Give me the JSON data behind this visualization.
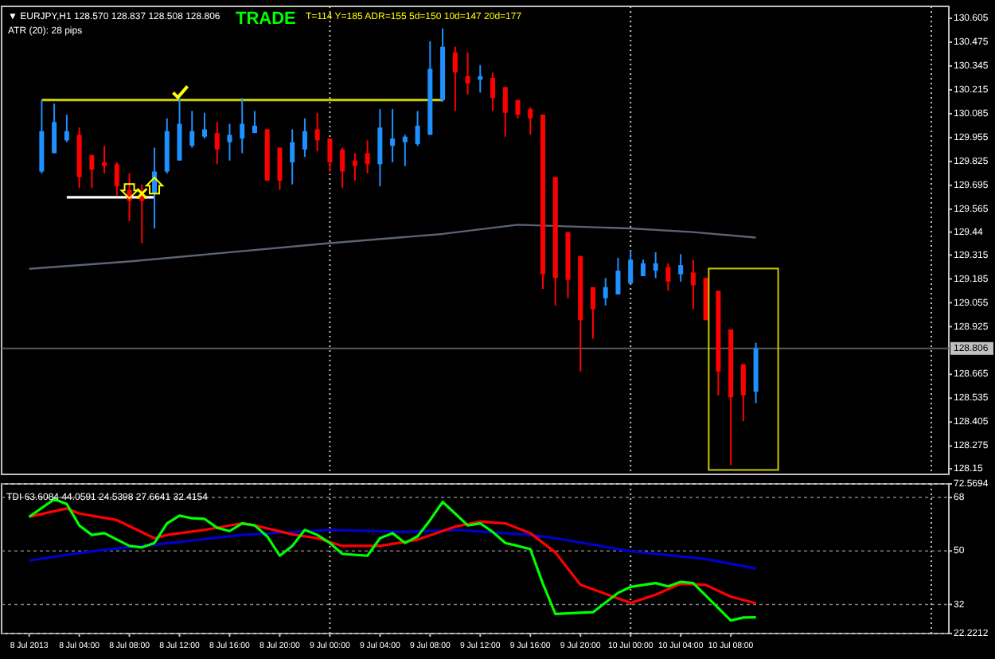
{
  "chart_data": [
    {
      "type": "candlestick",
      "xlim": [
        "2013-07-07T21:48",
        "2013-07-11T01:24"
      ],
      "ylim": [
        128.12,
        130.67
      ],
      "tick_labels": "y",
      "yticks": [
        128.15,
        128.275,
        128.405,
        128.535,
        128.665,
        128.925,
        129.055,
        129.185,
        129.315,
        129.44,
        129.565,
        129.695,
        129.825,
        129.955,
        130.085,
        130.215,
        130.345,
        130.475,
        130.605
      ],
      "x": [
        "2013-07-08T01:00",
        "2013-07-08T02:00",
        "2013-07-08T03:00",
        "2013-07-08T04:00",
        "2013-07-08T05:00",
        "2013-07-08T06:00",
        "2013-07-08T07:00",
        "2013-07-08T08:00",
        "2013-07-08T09:00",
        "2013-07-08T10:00",
        "2013-07-08T11:00",
        "2013-07-08T12:00",
        "2013-07-08T13:00",
        "2013-07-08T14:00",
        "2013-07-08T15:00",
        "2013-07-08T16:00",
        "2013-07-08T17:00",
        "2013-07-08T18:00",
        "2013-07-08T19:00",
        "2013-07-08T20:00",
        "2013-07-08T21:00",
        "2013-07-08T22:00",
        "2013-07-08T23:00",
        "2013-07-09T00:00",
        "2013-07-09T01:00",
        "2013-07-09T02:00",
        "2013-07-09T03:00",
        "2013-07-09T04:00",
        "2013-07-09T05:00",
        "2013-07-09T06:00",
        "2013-07-09T07:00",
        "2013-07-09T08:00",
        "2013-07-09T09:00",
        "2013-07-09T10:00",
        "2013-07-09T11:00",
        "2013-07-09T12:00",
        "2013-07-09T13:00",
        "2013-07-09T14:00",
        "2013-07-09T15:00",
        "2013-07-09T16:00",
        "2013-07-09T17:00",
        "2013-07-09T18:00",
        "2013-07-09T19:00",
        "2013-07-09T20:00",
        "2013-07-09T21:00",
        "2013-07-09T22:00",
        "2013-07-09T23:00",
        "2013-07-10T00:00",
        "2013-07-10T01:00",
        "2013-07-10T02:00",
        "2013-07-10T03:00",
        "2013-07-10T04:00",
        "2013-07-10T05:00",
        "2013-07-10T06:00",
        "2013-07-10T07:00",
        "2013-07-10T08:00",
        "2013-07-10T09:00",
        "2013-07-10T10:00"
      ],
      "ohlc": [
        [
          129.77,
          130.16,
          129.76,
          129.99
        ],
        [
          129.87,
          130.14,
          129.87,
          130.04
        ],
        [
          129.94,
          130.08,
          129.93,
          129.99
        ],
        [
          129.97,
          130.01,
          129.68,
          129.74
        ],
        [
          129.86,
          129.86,
          129.68,
          129.78
        ],
        [
          129.82,
          129.91,
          129.76,
          129.8
        ],
        [
          129.81,
          129.82,
          129.64,
          129.69
        ],
        [
          129.67,
          129.76,
          129.5,
          129.61
        ],
        [
          129.65,
          129.7,
          129.38,
          129.61
        ],
        [
          129.65,
          129.9,
          129.46,
          129.77
        ],
        [
          129.77,
          130.06,
          129.76,
          129.99
        ],
        [
          129.83,
          130.17,
          129.83,
          130.03
        ],
        [
          129.91,
          130.1,
          129.9,
          129.99
        ],
        [
          129.96,
          130.09,
          129.95,
          130.0
        ],
        [
          129.98,
          130.04,
          129.81,
          129.89
        ],
        [
          129.93,
          130.03,
          129.83,
          129.97
        ],
        [
          129.95,
          130.17,
          129.87,
          130.03
        ],
        [
          129.98,
          130.1,
          129.98,
          130.02
        ],
        [
          130.0,
          130.0,
          129.72,
          129.72
        ],
        [
          129.9,
          129.9,
          129.67,
          129.72
        ],
        [
          129.82,
          130.0,
          129.7,
          129.93
        ],
        [
          129.89,
          130.06,
          129.85,
          129.99
        ],
        [
          130.0,
          130.09,
          129.88,
          129.94
        ],
        [
          129.95,
          129.95,
          129.77,
          129.82
        ],
        [
          129.89,
          129.9,
          129.68,
          129.77
        ],
        [
          129.83,
          129.87,
          129.72,
          129.8
        ],
        [
          129.87,
          129.94,
          129.76,
          129.81
        ],
        [
          129.81,
          130.11,
          129.69,
          130.01
        ],
        [
          129.91,
          130.11,
          129.82,
          129.95
        ],
        [
          129.93,
          129.97,
          129.8,
          129.96
        ],
        [
          129.92,
          130.1,
          129.91,
          130.02
        ],
        [
          129.97,
          130.48,
          129.97,
          130.33
        ],
        [
          130.16,
          130.55,
          130.15,
          130.45
        ],
        [
          130.42,
          130.45,
          130.1,
          130.31
        ],
        [
          130.29,
          130.42,
          130.19,
          130.25
        ],
        [
          130.27,
          130.35,
          130.2,
          130.29
        ],
        [
          130.28,
          130.31,
          130.1,
          130.17
        ],
        [
          130.23,
          130.23,
          129.96,
          130.09
        ],
        [
          130.16,
          130.16,
          130.06,
          130.08
        ],
        [
          130.11,
          130.12,
          129.97,
          130.06
        ],
        [
          130.08,
          130.08,
          129.13,
          129.21
        ],
        [
          129.74,
          129.74,
          129.04,
          129.19
        ],
        [
          129.44,
          129.44,
          129.08,
          129.18
        ],
        [
          129.31,
          129.31,
          128.68,
          128.96
        ],
        [
          129.14,
          129.14,
          128.86,
          129.02
        ],
        [
          129.08,
          129.19,
          129.04,
          129.14
        ],
        [
          129.1,
          129.3,
          129.1,
          129.23
        ],
        [
          129.16,
          129.34,
          129.16,
          129.29
        ],
        [
          129.2,
          129.29,
          129.2,
          129.27
        ],
        [
          129.23,
          129.33,
          129.19,
          129.27
        ],
        [
          129.25,
          129.27,
          129.12,
          129.17
        ],
        [
          129.21,
          129.32,
          129.17,
          129.26
        ],
        [
          129.22,
          129.29,
          129.02,
          129.15
        ],
        [
          129.19,
          129.19,
          128.96,
          128.96
        ],
        [
          129.12,
          129.12,
          128.55,
          128.68
        ],
        [
          128.91,
          128.91,
          128.17,
          128.54
        ],
        [
          128.72,
          128.72,
          128.41,
          128.55
        ],
        [
          128.57,
          128.837,
          128.508,
          128.806
        ]
      ],
      "colors": [
        "#1e90ff",
        "#1e90ff",
        "#1e90ff",
        "#ff0000",
        "#ff0000",
        "#ff0000",
        "#ff0000",
        "#ff0000",
        "#ff0000",
        "#1e90ff",
        "#1e90ff",
        "#1e90ff",
        "#1e90ff",
        "#1e90ff",
        "#ff0000",
        "#1e90ff",
        "#1e90ff",
        "#1e90ff",
        "#ff0000",
        "#ff0000",
        "#1e90ff",
        "#1e90ff",
        "#ff0000",
        "#ff0000",
        "#ff0000",
        "#ff0000",
        "#ff0000",
        "#1e90ff",
        "#1e90ff",
        "#1e90ff",
        "#1e90ff",
        "#1e90ff",
        "#1e90ff",
        "#ff0000",
        "#ff0000",
        "#1e90ff",
        "#ff0000",
        "#ff0000",
        "#ff0000",
        "#ff0000",
        "#ff0000",
        "#ff0000",
        "#ff0000",
        "#ff0000",
        "#ff0000",
        "#1e90ff",
        "#1e90ff",
        "#1e90ff",
        "#1e90ff",
        "#1e90ff",
        "#ff0000",
        "#1e90ff",
        "#ff0000",
        "#ff0000",
        "#ff0000",
        "#ff0000",
        "#ff0000",
        "#1e90ff"
      ],
      "series": [
        {
          "type": "line",
          "color": "#5a6472",
          "x": [
            "2013-07-08T00:00",
            "2013-07-08T08:00",
            "2013-07-09T00:00",
            "2013-07-09T09:00",
            "2013-07-09T15:00",
            "2013-07-10T00:00",
            "2013-07-10T05:00",
            "2013-07-10T10:00"
          ],
          "values": [
            129.24,
            129.28,
            129.38,
            129.43,
            129.48,
            129.46,
            129.44,
            129.41
          ]
        },
        {
          "type": "line",
          "color": "#c8c800",
          "x": [
            "2013-07-08T01:00",
            "2013-07-09T09:00"
          ],
          "values": [
            130.16,
            130.16
          ]
        },
        {
          "type": "line",
          "color": "#ffffff",
          "x": [
            "2013-07-08T03:00",
            "2013-07-08T10:00"
          ],
          "values": [
            129.63,
            129.63
          ]
        }
      ],
      "ref_lines": [
        {
          "axis": "y",
          "value": 128.806,
          "label": "128.806",
          "color": "#5a5a5a",
          "line_style": "solid"
        },
        {
          "axis": "x",
          "value": "2013-07-09T00:00",
          "color": "#c0c0c0",
          "line_style": "dotted"
        },
        {
          "axis": "x",
          "value": "2013-07-10T00:00",
          "color": "#c0c0c0",
          "line_style": "dotted"
        },
        {
          "axis": "x",
          "value": "2013-07-11T00:00",
          "color": "#c0c0c0",
          "line_style": "dotted"
        }
      ],
      "annotations": [
        "▼ EURJPY,H1 128.570 128.837 128.508 128.806",
        "TRADE",
        "T=114 Y=185 ADR=155 5d=150 10d=147 20d=177",
        "ATR (20): 28 pips"
      ]
    },
    {
      "type": "line",
      "xlim": [
        "2013-07-07T21:48",
        "2013-07-11T01:24"
      ],
      "ylim": [
        22.2212,
        72.5694
      ],
      "yticks": [
        72.5694,
        68,
        50,
        32,
        22.2212
      ],
      "grid": "y",
      "xticks": [
        {
          "value": "2013-07-08T00:00",
          "label": "8 Jul 2013"
        },
        {
          "value": "2013-07-08T04:00",
          "label": "8 Jul 04:00"
        },
        {
          "value": "2013-07-08T08:00",
          "label": "8 Jul 08:00"
        },
        {
          "value": "2013-07-08T12:00",
          "label": "8 Jul 12:00"
        },
        {
          "value": "2013-07-08T16:00",
          "label": "8 Jul 16:00"
        },
        {
          "value": "2013-07-08T20:00",
          "label": "8 Jul 20:00"
        },
        {
          "value": "2013-07-09T00:00",
          "label": "9 Jul 00:00"
        },
        {
          "value": "2013-07-09T04:00",
          "label": "9 Jul 04:00"
        },
        {
          "value": "2013-07-09T08:00",
          "label": "9 Jul 08:00"
        },
        {
          "value": "2013-07-09T12:00",
          "label": "9 Jul 12:00"
        },
        {
          "value": "2013-07-09T16:00",
          "label": "9 Jul 16:00"
        },
        {
          "value": "2013-07-09T20:00",
          "label": "9 Jul 20:00"
        },
        {
          "value": "2013-07-10T00:00",
          "label": "10 Jul 00:00"
        },
        {
          "value": "2013-07-10T04:00",
          "label": "10 Jul 04:00"
        },
        {
          "value": "2013-07-10T08:00",
          "label": "10 Jul 08:00"
        }
      ],
      "series": [
        {
          "color": "#0000cd",
          "x": [
            "2013-07-08T00:00",
            "2013-07-08T05:00",
            "2013-07-08T10:00",
            "2013-07-08T17:00",
            "2013-07-09T00:00",
            "2013-07-09T06:00",
            "2013-07-09T10:00",
            "2013-07-09T16:00",
            "2013-07-09T18:00",
            "2013-07-10T00:00",
            "2013-07-10T06:00",
            "2013-07-10T10:00"
          ],
          "values": [
            46.8,
            49.9,
            52.1,
            55.4,
            57.1,
            56.4,
            57.1,
            55.4,
            54.3,
            49.9,
            47.3,
            44.1
          ]
        },
        {
          "color": "#ff0000",
          "x": [
            "2013-07-08T00:00",
            "2013-07-08T03:00",
            "2013-07-08T04:00",
            "2013-07-08T07:00",
            "2013-07-08T10:00",
            "2013-07-08T11:00",
            "2013-07-08T14:00",
            "2013-07-08T17:00",
            "2013-07-08T18:00",
            "2013-07-08T21:00",
            "2013-07-08T23:00",
            "2013-07-09T01:00",
            "2013-07-09T04:00",
            "2013-07-09T07:00",
            "2013-07-09T10:00",
            "2013-07-09T12:00",
            "2013-07-09T14:00",
            "2013-07-09T16:00",
            "2013-07-09T18:00",
            "2013-07-09T20:00",
            "2013-07-10T00:00",
            "2013-07-10T02:00",
            "2013-07-10T04:00",
            "2013-07-10T06:00",
            "2013-07-10T08:00",
            "2013-07-10T10:00"
          ],
          "values": [
            61.5,
            64.3,
            62.6,
            60.4,
            54.3,
            55.4,
            57.1,
            59.3,
            58.6,
            55.6,
            54.3,
            51.7,
            51.7,
            53.8,
            58.2,
            59.9,
            59.3,
            56.0,
            49.5,
            38.6,
            32.5,
            35.3,
            39.0,
            38.6,
            34.6,
            32.4
          ]
        },
        {
          "color": "#00ff00",
          "x": [
            "2013-07-08T00:00",
            "2013-07-08T02:00",
            "2013-07-08T03:00",
            "2013-07-08T04:00",
            "2013-07-08T05:00",
            "2013-07-08T06:00",
            "2013-07-08T08:00",
            "2013-07-08T09:00",
            "2013-07-08T10:00",
            "2013-07-08T11:00",
            "2013-07-08T12:00",
            "2013-07-08T13:00",
            "2013-07-08T14:00",
            "2013-07-08T15:00",
            "2013-07-08T16:00",
            "2013-07-08T17:00",
            "2013-07-08T18:00",
            "2013-07-08T19:00",
            "2013-07-08T20:00",
            "2013-07-08T21:00",
            "2013-07-08T22:00",
            "2013-07-08T23:00",
            "2013-07-09T00:00",
            "2013-07-09T01:00",
            "2013-07-09T03:00",
            "2013-07-09T04:00",
            "2013-07-09T05:00",
            "2013-07-09T06:00",
            "2013-07-09T07:00",
            "2013-07-09T08:00",
            "2013-07-09T09:00",
            "2013-07-09T10:00",
            "2013-07-09T11:00",
            "2013-07-09T12:00",
            "2013-07-09T13:00",
            "2013-07-09T14:00",
            "2013-07-09T15:00",
            "2013-07-09T16:00",
            "2013-07-09T17:00",
            "2013-07-09T18:00",
            "2013-07-09T21:00",
            "2013-07-09T23:00",
            "2013-07-10T00:00",
            "2013-07-10T02:00",
            "2013-07-10T03:00",
            "2013-07-10T04:00",
            "2013-07-10T05:00",
            "2013-07-10T08:00",
            "2013-07-10T09:00",
            "2013-07-10T10:00"
          ],
          "values": [
            61.5,
            67.4,
            65.8,
            58.6,
            55.4,
            56.0,
            51.7,
            51.2,
            52.7,
            59.3,
            61.9,
            61.0,
            60.8,
            57.8,
            56.7,
            59.3,
            58.6,
            54.9,
            48.4,
            51.7,
            57.1,
            55.4,
            52.7,
            49.0,
            48.4,
            54.3,
            56.0,
            52.7,
            54.9,
            60.4,
            66.5,
            62.6,
            58.6,
            59.3,
            56.4,
            52.7,
            51.7,
            50.6,
            39.0,
            28.8,
            29.4,
            35.9,
            37.9,
            39.2,
            38.1,
            39.6,
            39.2,
            26.6,
            27.6,
            27.7
          ]
        }
      ],
      "ref_lines": [
        {
          "axis": "x",
          "value": "2013-07-09T00:00",
          "color": "#c0c0c0",
          "line_style": "dotted"
        },
        {
          "axis": "x",
          "value": "2013-07-10T00:00",
          "color": "#c0c0c0",
          "line_style": "dotted"
        },
        {
          "axis": "x",
          "value": "2013-07-11T00:00",
          "color": "#c0c0c0",
          "line_style": "dotted"
        }
      ],
      "annotations": [
        "TDI 63.6084 44.0591 24.5398 27.6641 32.4154"
      ]
    }
  ]
}
